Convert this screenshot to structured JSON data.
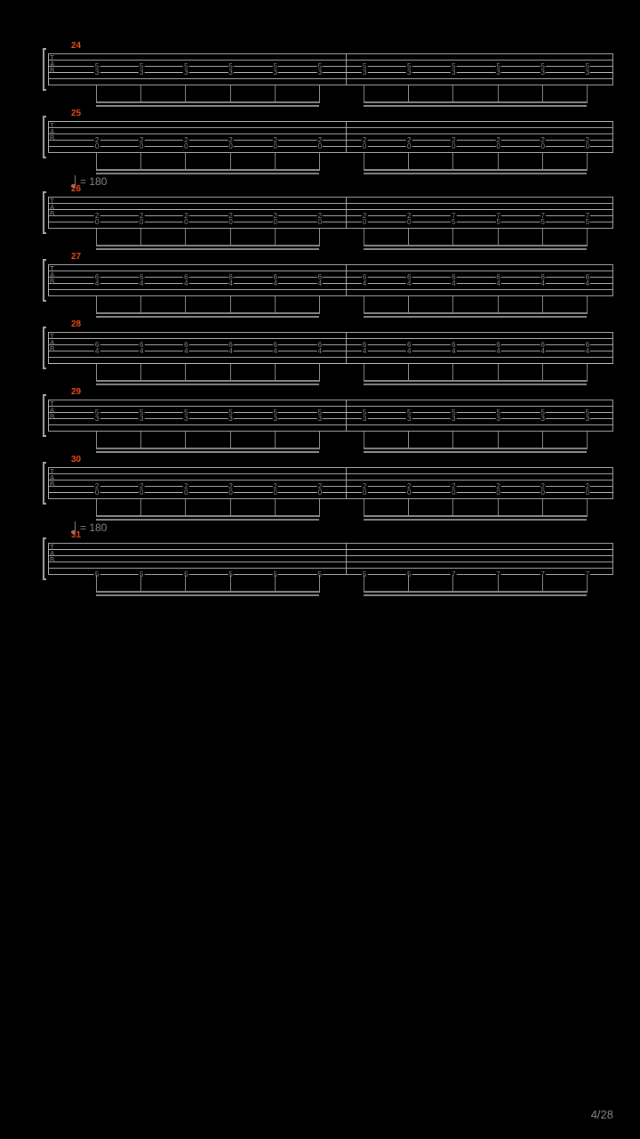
{
  "page": "4/28",
  "background_color": "#000000",
  "line_color": "#aaaaaa",
  "text_color": "#888888",
  "measure_number_color": "#e84c1a",
  "tab_label": [
    "T",
    "A",
    "B"
  ],
  "tempo_marks": [
    {
      "before_measure": 26,
      "bpm": 180
    },
    {
      "before_measure": 31,
      "bpm": 180
    }
  ],
  "measures": [
    {
      "number": 24,
      "beats": 12,
      "string_rows": [
        2,
        3
      ],
      "notes": [
        [
          5,
          5,
          5,
          5,
          5,
          5,
          5,
          5,
          5,
          5,
          5,
          5
        ],
        [
          3,
          3,
          3,
          3,
          3,
          3,
          3,
          3,
          3,
          3,
          3,
          3
        ]
      ]
    },
    {
      "number": 25,
      "beats": 12,
      "string_rows": [
        3,
        4
      ],
      "notes": [
        [
          2,
          2,
          2,
          2,
          2,
          2,
          2,
          2,
          2,
          2,
          2,
          2
        ],
        [
          0,
          0,
          0,
          0,
          0,
          0,
          0,
          0,
          0,
          0,
          0,
          0
        ]
      ]
    },
    {
      "number": 26,
      "beats": 12,
      "string_rows": [
        3,
        4
      ],
      "notes": [
        [
          2,
          2,
          2,
          2,
          2,
          2,
          2,
          2,
          7,
          7,
          7,
          7
        ],
        [
          0,
          0,
          0,
          0,
          0,
          0,
          0,
          0,
          5,
          5,
          5,
          5
        ]
      ]
    },
    {
      "number": 27,
      "beats": 12,
      "string_rows": [
        2,
        3
      ],
      "notes": [
        [
          6,
          6,
          6,
          6,
          6,
          6,
          6,
          6,
          6,
          6,
          6,
          6
        ],
        [
          4,
          4,
          4,
          4,
          4,
          4,
          4,
          4,
          4,
          4,
          4,
          4
        ]
      ]
    },
    {
      "number": 28,
      "beats": 12,
      "string_rows": [
        2,
        3
      ],
      "notes": [
        [
          6,
          6,
          6,
          6,
          6,
          6,
          6,
          6,
          6,
          6,
          6,
          6
        ],
        [
          4,
          4,
          4,
          4,
          4,
          4,
          4,
          4,
          4,
          4,
          4,
          4
        ]
      ]
    },
    {
      "number": 29,
      "beats": 12,
      "string_rows": [
        2,
        3
      ],
      "notes": [
        [
          5,
          5,
          5,
          5,
          5,
          5,
          5,
          5,
          5,
          5,
          5,
          5
        ],
        [
          3,
          3,
          3,
          3,
          3,
          3,
          3,
          3,
          3,
          3,
          3,
          3
        ]
      ]
    },
    {
      "number": 30,
      "beats": 12,
      "string_rows": [
        3,
        4
      ],
      "notes": [
        [
          2,
          2,
          2,
          2,
          2,
          2,
          2,
          2,
          2,
          2,
          2,
          2
        ],
        [
          0,
          0,
          0,
          0,
          0,
          0,
          0,
          0,
          0,
          0,
          0,
          0
        ]
      ]
    },
    {
      "number": 31,
      "beats": 12,
      "string_rows": [
        5
      ],
      "notes": [
        [
          5,
          5,
          5,
          5,
          5,
          5,
          5,
          5,
          7,
          7,
          7,
          7
        ]
      ]
    }
  ]
}
